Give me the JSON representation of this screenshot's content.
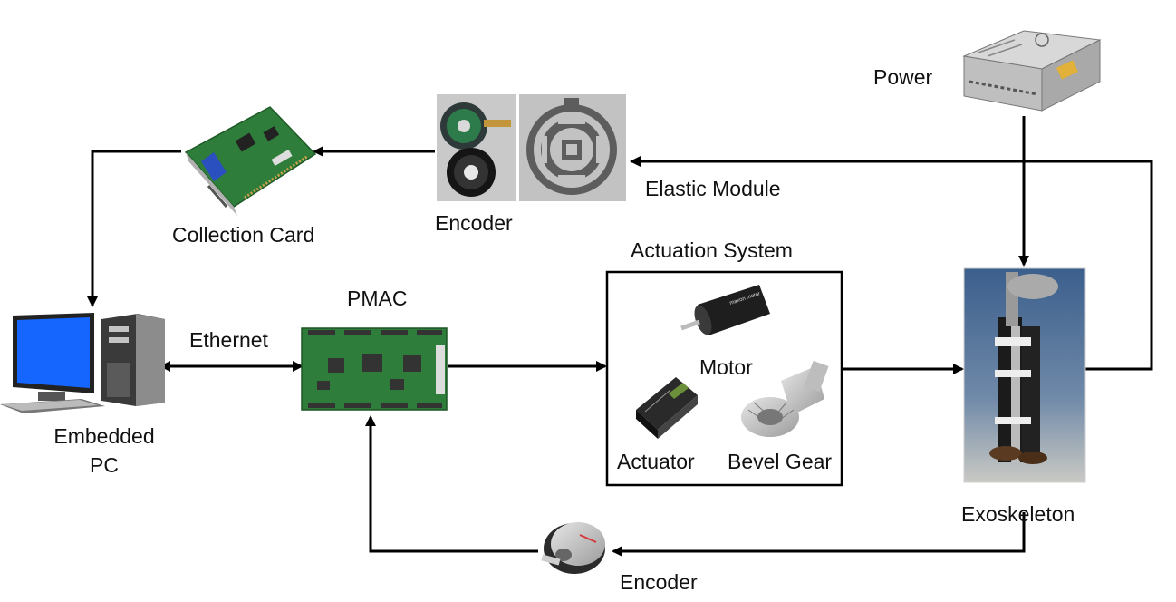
{
  "labels": {
    "power": "Power",
    "elastic_module": "Elastic Module",
    "encoder_top": "Encoder",
    "collection_card": "Collection Card",
    "actuation_system": "Actuation System",
    "pmac": "PMAC",
    "ethernet": "Ethernet",
    "embedded_pc_line1": "Embedded",
    "embedded_pc_line2": "PC",
    "motor": "Motor",
    "actuator": "Actuator",
    "bevel_gear": "Bevel Gear",
    "exoskeleton": "Exoskeleton",
    "encoder_bottom": "Encoder"
  },
  "colors": {
    "line": "#000000",
    "pcb_green": "#2f7d3a",
    "monitor_blue": "#1565ff",
    "metal_gray": "#9a9a9a",
    "dark_gray": "#3a3a3a"
  },
  "icons": {
    "power_supply": "power-supply-icon",
    "encoder_disk": "encoder-disk-icon",
    "elastic_module": "elastic-module-icon",
    "collection_card": "collection-card-icon",
    "pmac_board": "pmac-board-icon",
    "embedded_pc": "computer-icon",
    "motor": "motor-icon",
    "actuator": "actuator-driver-icon",
    "bevel_gear": "bevel-gear-icon",
    "exoskeleton": "exoskeleton-photo-icon",
    "rotary_encoder": "rotary-encoder-icon"
  }
}
